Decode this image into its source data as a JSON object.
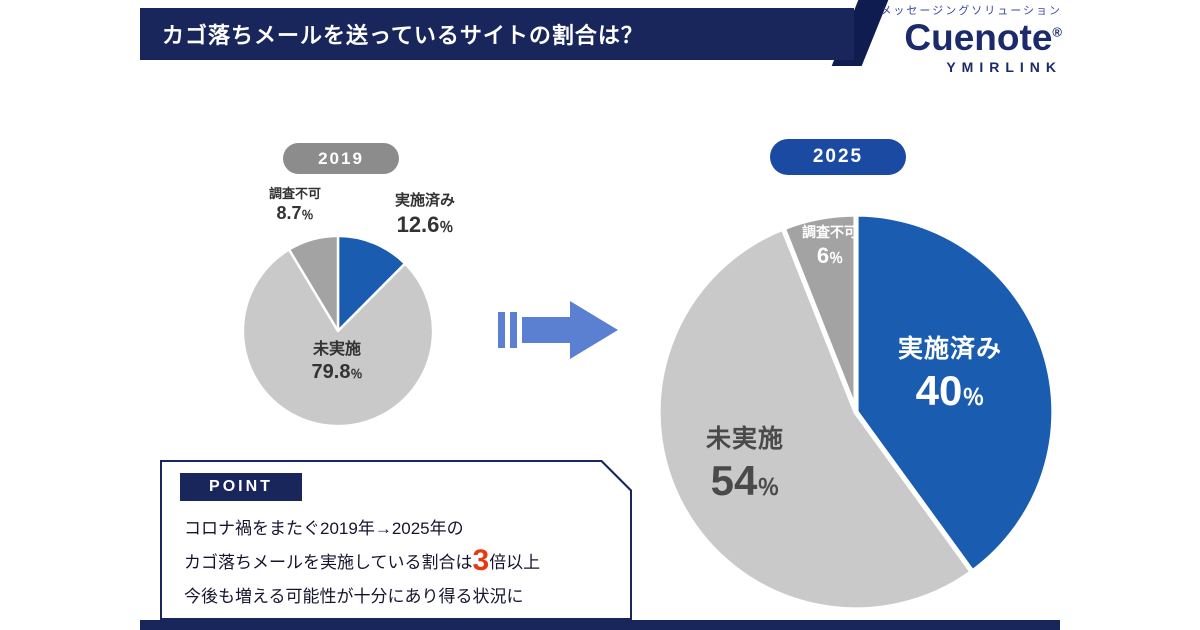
{
  "header": {
    "title": "カゴ落ちメールを送っているサイトの割合は？"
  },
  "brand": {
    "tagline": "メッセージングソリューション",
    "name": "Cuenote",
    "reg_mark": "®",
    "sub_name": "YMIRLINK"
  },
  "colors": {
    "navy": "#18265c",
    "accent_navy": "#0e1c4f",
    "pie_blue": "#1a5cb0",
    "pie_light_gray": "#c9c9c9",
    "pie_mid_gray": "#a3a3a3",
    "badge_2019": "#8c8c8c",
    "badge_2025": "#1b4aa2",
    "arrow_blue": "#5b80d2",
    "highlight_red": "#e8380d"
  },
  "chart_data": [
    {
      "type": "pie",
      "title": "2019",
      "legend": "none",
      "labels": "on-slices",
      "start_angle_deg": -90,
      "direction": "clockwise",
      "segments": [
        {
          "label": "実施済み",
          "value": 12.6,
          "display": "12.6",
          "unit": "％",
          "color": "#1a5cb0"
        },
        {
          "label": "未実施",
          "value": 79.8,
          "display": "79.8",
          "unit": "％",
          "color": "#c9c9c9"
        },
        {
          "label": "調査不可",
          "value": 8.7,
          "display": "8.7",
          "unit": "％",
          "color": "#a3a3a3"
        }
      ]
    },
    {
      "type": "pie",
      "title": "2025",
      "legend": "none",
      "labels": "on-slices",
      "start_angle_deg": -90,
      "direction": "clockwise",
      "segments": [
        {
          "label": "実施済み",
          "value": 40,
          "display": "40",
          "unit": "％",
          "color": "#1a5cb0"
        },
        {
          "label": "未実施",
          "value": 54,
          "display": "54",
          "unit": "％",
          "color": "#c9c9c9"
        },
        {
          "label": "調査不可",
          "value": 6,
          "display": "6",
          "unit": "％",
          "color": "#a3a3a3"
        }
      ]
    }
  ],
  "point": {
    "tag": "POINT",
    "line1": "コロナ禍をまたぐ2019年→2025年の",
    "line2_pre": "カゴ落ちメールを実施している割合は",
    "line2_big": "3",
    "line2_post": "倍以上",
    "line3": "今後も増える可能性が十分にあり得る状況に"
  }
}
